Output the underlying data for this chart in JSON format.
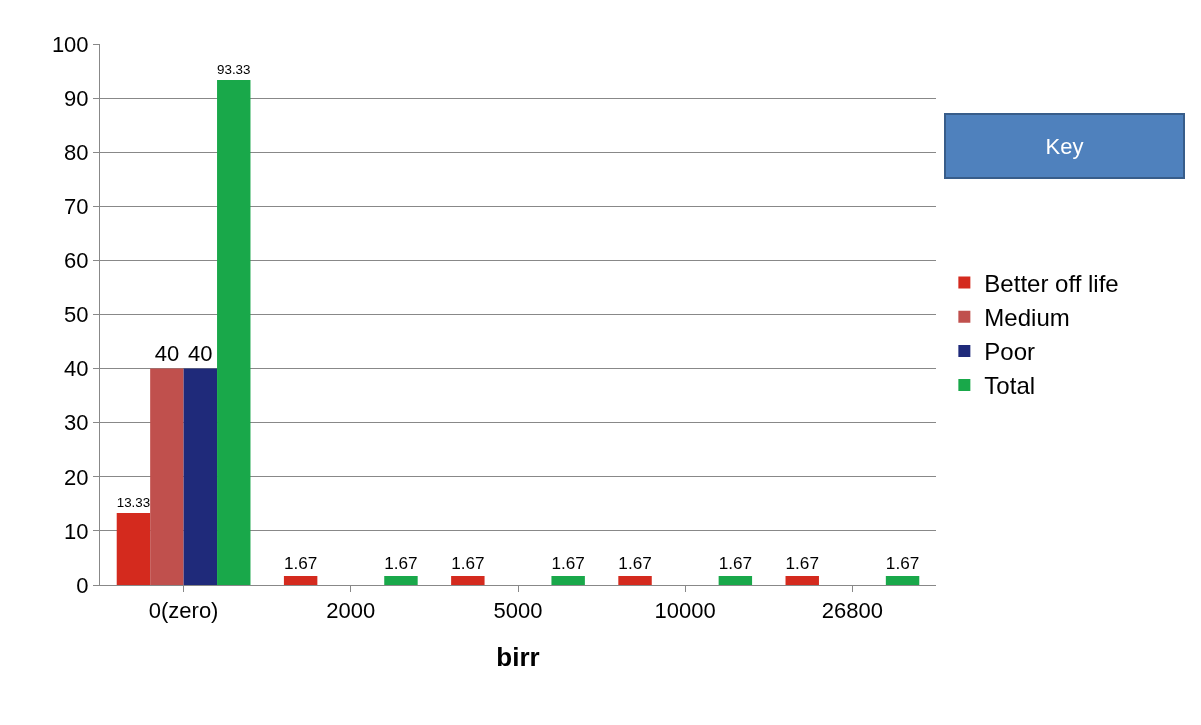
{
  "chart_data": {
    "type": "bar",
    "xlabel": "birr",
    "legend_title": "Key",
    "categories": [
      "0(zero)",
      "2000",
      "5000",
      "10000",
      "26800"
    ],
    "series": [
      {
        "name": "Better off life",
        "color": "#d42a1e",
        "values": [
          13.33,
          1.67,
          1.67,
          1.67,
          1.67
        ],
        "value_labels": [
          "13.33",
          "1.67",
          "1.67",
          "1.67",
          "1.67"
        ]
      },
      {
        "name": "Medium",
        "color": "#c0504d",
        "values": [
          40,
          0,
          0,
          0,
          0
        ],
        "value_labels": [
          "40",
          null,
          null,
          null,
          null
        ]
      },
      {
        "name": "Poor",
        "color": "#1f2a7a",
        "values": [
          40,
          0,
          0,
          0,
          0
        ],
        "value_labels": [
          "40",
          null,
          null,
          null,
          null
        ]
      },
      {
        "name": "Total",
        "color": "#19a84a",
        "values": [
          93.33,
          1.67,
          1.67,
          1.67,
          1.67
        ],
        "value_labels": [
          "93.33",
          "1.67",
          "1.67",
          "1.67",
          "1.67"
        ]
      }
    ],
    "ylim": [
      0,
      100
    ],
    "yticks": [
      0,
      10,
      20,
      30,
      40,
      50,
      60,
      70,
      80,
      90,
      100
    ],
    "grid": "y",
    "legend": "right"
  }
}
